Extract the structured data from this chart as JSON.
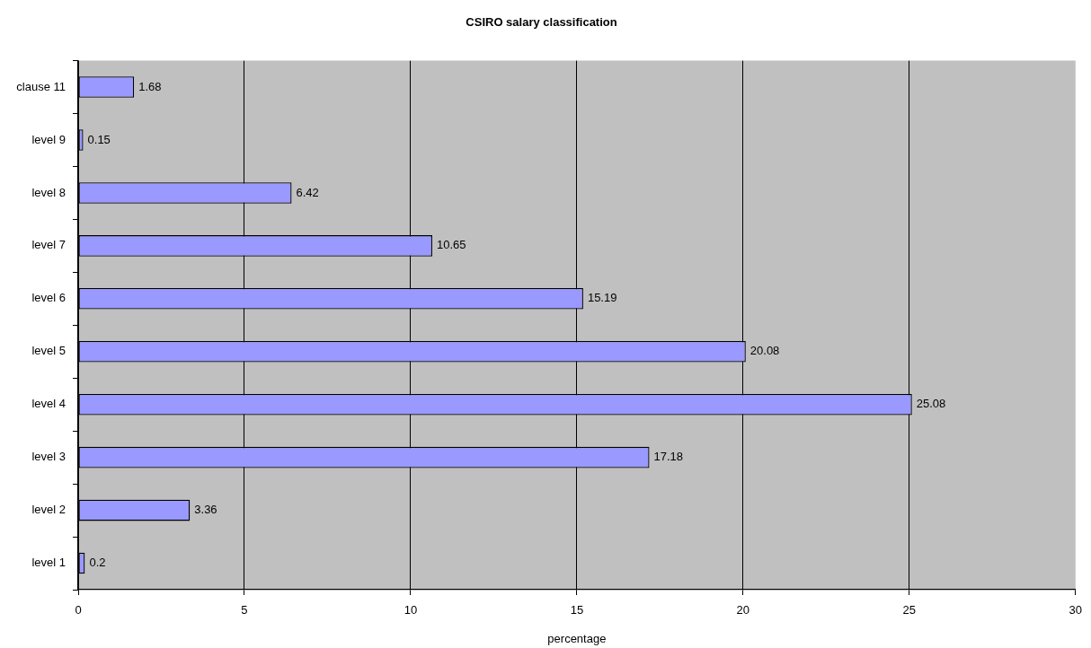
{
  "chart_data": {
    "type": "bar",
    "orientation": "horizontal",
    "title": "CSIRO salary classification",
    "xlabel": "percentage",
    "categories": [
      "clause 11",
      "level 9",
      "level 8",
      "level 7",
      "level 6",
      "level 5",
      "level 4",
      "level 3",
      "level 2",
      "level 1"
    ],
    "values": [
      1.68,
      0.15,
      6.42,
      10.65,
      15.19,
      20.08,
      25.08,
      17.18,
      3.36,
      0.2
    ],
    "color": "#9999ff",
    "xlim": [
      0,
      30
    ],
    "xticks": [
      0,
      5,
      10,
      15,
      20,
      25,
      30
    ],
    "grid": "x",
    "data_labels": true
  }
}
